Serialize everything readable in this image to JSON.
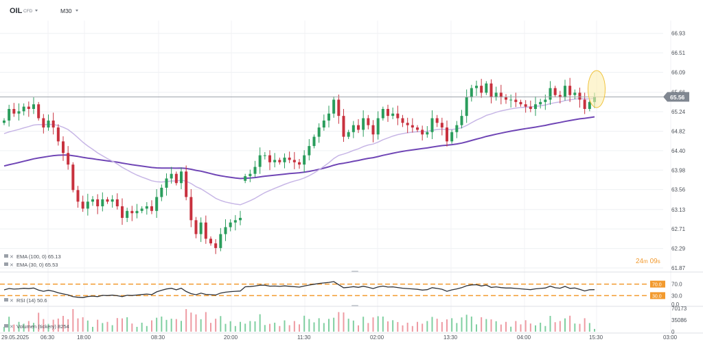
{
  "header": {
    "symbol": "OIL",
    "symbol_type": "CFD",
    "timeframe": "M30"
  },
  "countdown": {
    "minutes": "24",
    "m": "m",
    "seconds": "09",
    "s": "s"
  },
  "indicators": {
    "ema100": {
      "label": "EMA (100, 0) 65.13",
      "color": "#6f45b5"
    },
    "ema30": {
      "label": "EMA (30, 0) 65.53",
      "color": "#c7b6e6"
    },
    "rsi": {
      "label": "RSI (14) 50.6"
    },
    "volumes": {
      "label": "Volumen (tickery) 8254"
    }
  },
  "colors": {
    "up": "#2a9d5c",
    "down": "#c8313e",
    "accent": "#f29a2e",
    "price_tag": "#808791"
  },
  "chart_data": [
    {
      "type": "candlestick",
      "title": "OIL CFD M30",
      "current_price": "65.56",
      "price_ticks": [
        "66.93",
        "66.51",
        "66.09",
        "65.66",
        "65.24",
        "64.82",
        "64.40",
        "63.98",
        "63.56",
        "63.13",
        "62.71",
        "62.29",
        "61.87"
      ],
      "ylim": [
        61.87,
        67.0
      ],
      "x_ticks": [
        "29.05.2025",
        "06:30",
        "18:00",
        "08:30",
        "20:00",
        "11:30",
        "02:00",
        "13:30",
        "04:00",
        "15:30",
        "03:00"
      ],
      "close": [
        65.05,
        65.3,
        65.2,
        65.25,
        65.35,
        65.3,
        65.4,
        65.1,
        64.9,
        65.05,
        64.9,
        64.6,
        64.35,
        64.1,
        63.55,
        63.3,
        63.15,
        63.3,
        63.35,
        63.2,
        63.35,
        63.3,
        63.35,
        63.2,
        62.95,
        63.1,
        63.05,
        63.1,
        63.15,
        63.2,
        63.1,
        63.4,
        63.6,
        63.8,
        63.9,
        63.7,
        63.95,
        63.4,
        62.9,
        62.6,
        62.85,
        62.5,
        62.4,
        62.3,
        62.6,
        62.75,
        62.85,
        62.9,
        62.95,
        63.85,
        63.9,
        64.05,
        64.3,
        64.3,
        64.15,
        64.2,
        64.15,
        64.25,
        64.2,
        64.15,
        64.1,
        64.3,
        64.5,
        64.7,
        64.9,
        65.05,
        65.2,
        65.5,
        65.15,
        64.7,
        64.8,
        64.95,
        64.85,
        65.1,
        64.95,
        64.75,
        65.1,
        65.3,
        65.15,
        65.2,
        65.1,
        65.0,
        64.95,
        64.9,
        64.85,
        64.75,
        64.8,
        65.1,
        65.0,
        64.9,
        64.6,
        64.8,
        64.95,
        65.15,
        65.55,
        65.75,
        65.8,
        65.65,
        65.85,
        65.55,
        65.65,
        65.55,
        65.5,
        65.5,
        65.45,
        65.4,
        65.35,
        65.3,
        65.4,
        65.45,
        65.5,
        65.75,
        65.6,
        65.55,
        65.8,
        65.6,
        65.65,
        65.5,
        65.3,
        65.45,
        65.56
      ],
      "ema30_last": 65.53,
      "ema100_last": 65.13,
      "rsi": {
        "levels": [
          70.0,
          30.0
        ],
        "axis_ticks": [
          "70.0",
          "30.0",
          "0.0"
        ],
        "last": 50.6
      },
      "volume": {
        "axis_ticks": [
          "70173",
          "35086",
          "0"
        ],
        "last": 8254
      }
    }
  ]
}
